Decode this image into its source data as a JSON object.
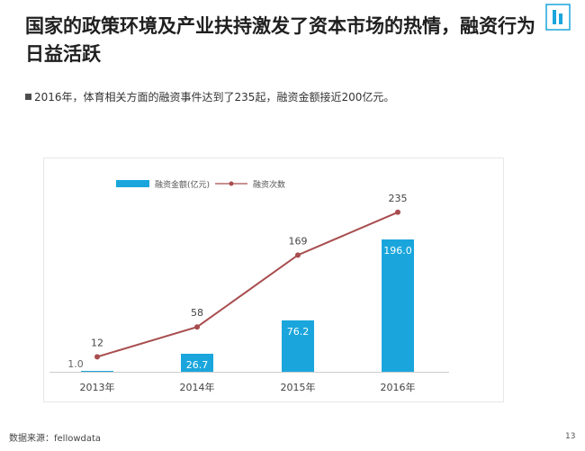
{
  "header": {
    "title": "国家的政策环境及产业扶持激发了资本市场的热情，融资行为日益活跃"
  },
  "summary": {
    "text": "2016年，体育相关方面的融资事件达到了235起，融资金额接近200亿元。"
  },
  "footer": {
    "source": "数据来源：fellowdata",
    "page_number": "13"
  },
  "colors": {
    "bar": "#1aa6dc",
    "line": "#a84d4f",
    "logo": "#1aa6dc"
  },
  "chart_data": {
    "type": "bar",
    "categories": [
      "2013年",
      "2014年",
      "2015年",
      "2016年"
    ],
    "series": [
      {
        "name": "融资金额(亿元)",
        "type": "bar",
        "values": [
          1.0,
          26.7,
          76.2,
          196.0
        ],
        "labels": [
          "1.0",
          "26.7",
          "76.2",
          "196.0"
        ]
      },
      {
        "name": "融资次数",
        "type": "line",
        "values": [
          12,
          58,
          169,
          235
        ],
        "labels": [
          "12",
          "58",
          "169",
          "235"
        ]
      }
    ],
    "legend_position": "top-left",
    "grid": false
  }
}
